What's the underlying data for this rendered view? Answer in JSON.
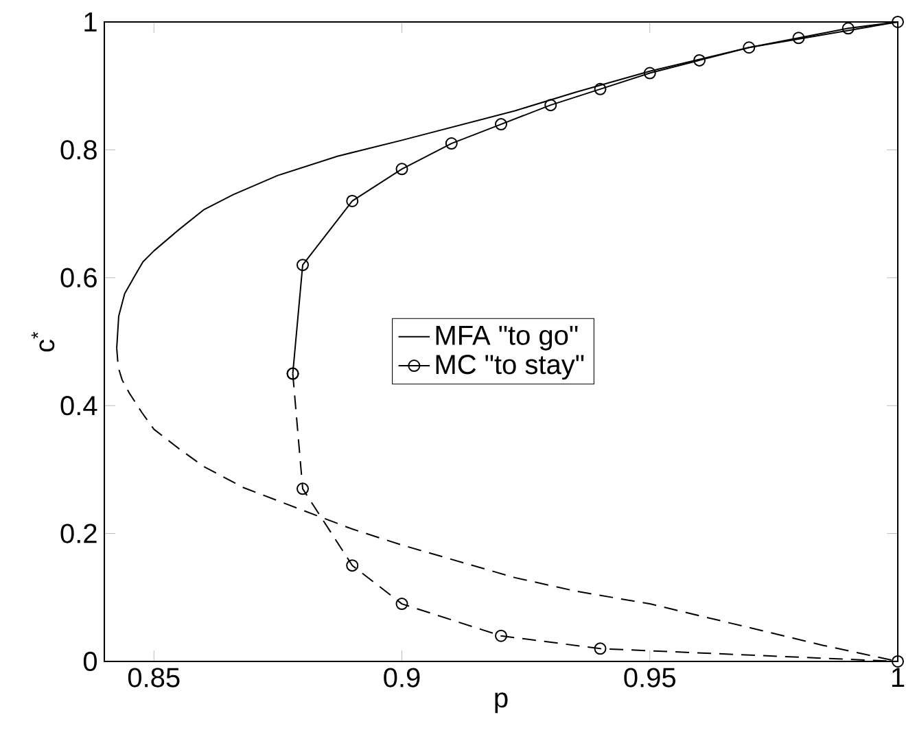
{
  "chart_data": {
    "type": "line",
    "xlabel": "p",
    "ylabel": "c$^{*}$",
    "xlim": [
      0.84,
      1
    ],
    "ylim": [
      0,
      1
    ],
    "xticks": [
      0.85,
      0.9,
      0.95,
      1
    ],
    "yticks": [
      0,
      0.2,
      0.4,
      0.6,
      0.8,
      1
    ],
    "grid": false,
    "legend": "center",
    "series": [
      {
        "name": "MFA \"to go\"",
        "color": "#000000",
        "line_style": "solid",
        "marker": "none",
        "x": [
          0.8425,
          0.8429,
          0.8441,
          0.8463,
          0.8478,
          0.85,
          0.855,
          0.86,
          0.866,
          0.875,
          0.887,
          0.9,
          0.9228,
          0.935,
          0.95,
          0.97,
          1
        ],
        "values": [
          0.49,
          0.54,
          0.575,
          0.605,
          0.625,
          0.642,
          0.675,
          0.706,
          0.73,
          0.76,
          0.79,
          0.815,
          0.861,
          0.89,
          0.923,
          0.96,
          1
        ]
      },
      {
        "color": "#000000",
        "line_style": "dashed",
        "marker": "none",
        "x": [
          0.8425,
          0.8428,
          0.8436,
          0.845,
          0.8475,
          0.85,
          0.855,
          0.86,
          0.868,
          0.8771,
          0.89,
          0.9,
          0.9228,
          0.935,
          0.95,
          0.97,
          0.985,
          1
        ],
        "values": [
          0.49,
          0.46,
          0.44,
          0.42,
          0.39,
          0.363,
          0.333,
          0.305,
          0.272,
          0.245,
          0.207,
          0.182,
          0.131,
          0.11,
          0.09,
          0.053,
          0.025,
          0
        ]
      },
      {
        "name": "MC \"to stay\"",
        "color": "#000000",
        "line_style": "solid",
        "marker": "circle",
        "x": [
          0.878,
          0.88,
          0.89,
          0.9,
          0.91,
          0.92,
          0.93,
          0.94,
          0.95,
          0.96,
          0.97,
          0.98,
          0.99,
          1
        ],
        "values": [
          0.45,
          0.62,
          0.72,
          0.77,
          0.81,
          0.84,
          0.87,
          0.895,
          0.92,
          0.94,
          0.96,
          0.975,
          0.99,
          1
        ]
      },
      {
        "color": "#000000",
        "line_style": "dashed",
        "marker": "circle",
        "x": [
          0.878,
          0.88,
          0.89,
          0.9,
          0.92,
          0.94,
          1
        ],
        "values": [
          0.45,
          0.27,
          0.15,
          0.09,
          0.04,
          0.02,
          0
        ]
      }
    ]
  }
}
